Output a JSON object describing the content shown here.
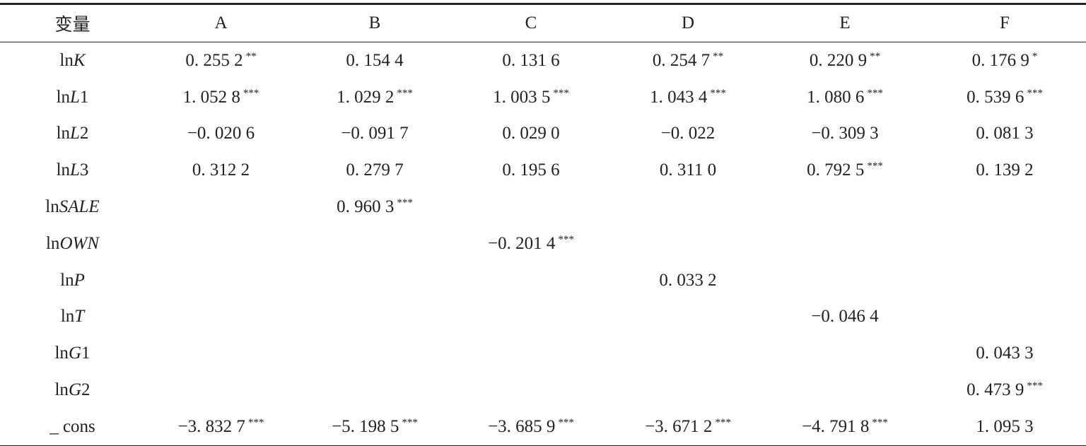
{
  "header": [
    "变量",
    "A",
    "B",
    "C",
    "D",
    "E",
    "F"
  ],
  "rows": [
    {
      "label": [
        "ln",
        "K"
      ],
      "cells": [
        {
          "v": "0. 255 2",
          "sig": "**"
        },
        {
          "v": "0. 154 4"
        },
        {
          "v": "0. 131 6"
        },
        {
          "v": "0. 254 7",
          "sig": "**"
        },
        {
          "v": "0. 220 9",
          "sig": "**"
        },
        {
          "v": "0. 176 9",
          "sig": "*"
        }
      ]
    },
    {
      "label": [
        "ln",
        "L",
        "1"
      ],
      "cells": [
        {
          "v": "1. 052 8",
          "sig": "***"
        },
        {
          "v": "1. 029 2",
          "sig": "***"
        },
        {
          "v": "1. 003 5",
          "sig": "***"
        },
        {
          "v": "1. 043 4",
          "sig": "***"
        },
        {
          "v": "1. 080 6",
          "sig": "***"
        },
        {
          "v": "0. 539 6",
          "sig": "***"
        }
      ]
    },
    {
      "label": [
        "ln",
        "L",
        "2"
      ],
      "cells": [
        {
          "v": "−0. 020 6"
        },
        {
          "v": "−0. 091 7"
        },
        {
          "v": "0. 029 0"
        },
        {
          "v": "−0. 022"
        },
        {
          "v": "−0. 309 3"
        },
        {
          "v": "0. 081 3"
        }
      ]
    },
    {
      "label": [
        "ln",
        "L",
        "3"
      ],
      "cells": [
        {
          "v": "0. 312 2"
        },
        {
          "v": "0. 279 7"
        },
        {
          "v": "0. 195 6"
        },
        {
          "v": "0. 311 0"
        },
        {
          "v": "0. 792 5",
          "sig": "***"
        },
        {
          "v": "0. 139 2"
        }
      ]
    },
    {
      "label": [
        "ln",
        "SALE"
      ],
      "cells": [
        null,
        {
          "v": "0. 960 3",
          "sig": "***"
        },
        null,
        null,
        null,
        null
      ]
    },
    {
      "label": [
        "ln",
        "OWN"
      ],
      "cells": [
        null,
        null,
        {
          "v": "−0. 201 4",
          "sig": "***"
        },
        null,
        null,
        null
      ]
    },
    {
      "label": [
        "ln",
        "P"
      ],
      "cells": [
        null,
        null,
        null,
        {
          "v": "0. 033 2"
        },
        null,
        null
      ]
    },
    {
      "label": [
        "ln",
        "T"
      ],
      "cells": [
        null,
        null,
        null,
        null,
        {
          "v": "−0. 046 4"
        },
        null
      ]
    },
    {
      "label": [
        "ln",
        "G",
        "1"
      ],
      "cells": [
        null,
        null,
        null,
        null,
        null,
        {
          "v": "0. 043 3"
        }
      ]
    },
    {
      "label": [
        "ln",
        "G",
        "2"
      ],
      "cells": [
        null,
        null,
        null,
        null,
        null,
        {
          "v": "0. 473 9",
          "sig": "***"
        }
      ]
    },
    {
      "label": [
        "_ cons"
      ],
      "cells": [
        {
          "v": "−3. 832 7",
          "sig": "***"
        },
        {
          "v": "−5. 198 5",
          "sig": "***"
        },
        {
          "v": "−3. 685 9",
          "sig": "***"
        },
        {
          "v": "−3. 671 2",
          "sig": "***"
        },
        {
          "v": "−4. 791 8",
          "sig": "***"
        },
        {
          "v": "1. 095 3"
        }
      ]
    }
  ]
}
